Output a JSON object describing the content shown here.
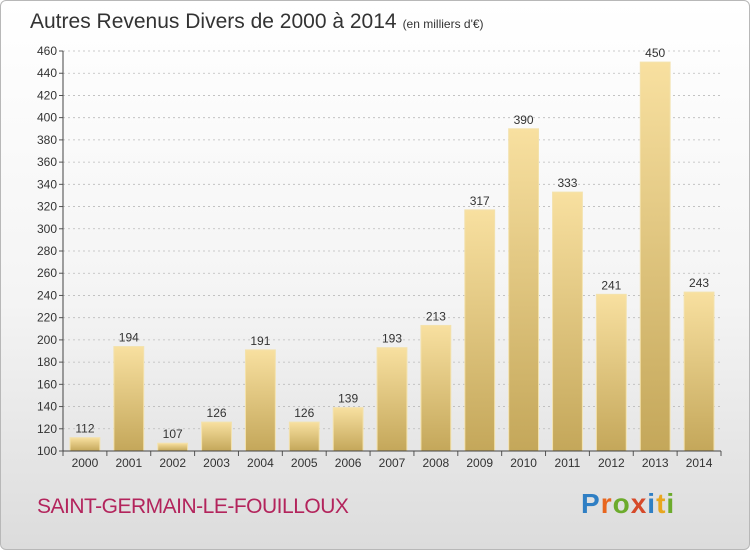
{
  "title": "Autres Revenus Divers de 2000 à 2014",
  "unit_note": "(en milliers d'€)",
  "place": "SAINT-GERMAIN-LE-FOUILLOUX",
  "logo": "Proxiti",
  "colors": {
    "bar_light": "#f7dc98",
    "bar_dark": "#c6a95c",
    "grid": "#bbbbbb",
    "place_text": "#b3245c"
  },
  "chart_data": {
    "type": "bar",
    "title": "Autres Revenus Divers de 2000 à 2014",
    "categories": [
      "2000",
      "2001",
      "2002",
      "2003",
      "2004",
      "2005",
      "2006",
      "2007",
      "2008",
      "2009",
      "2010",
      "2011",
      "2012",
      "2013",
      "2014"
    ],
    "values": [
      112,
      194,
      107,
      126,
      191,
      126,
      139,
      193,
      213,
      317,
      390,
      333,
      241,
      450,
      243
    ],
    "ylim": [
      100,
      460
    ],
    "yticks": [
      100,
      120,
      140,
      160,
      180,
      200,
      220,
      240,
      260,
      280,
      300,
      320,
      340,
      360,
      380,
      400,
      420,
      440,
      460
    ],
    "grid": "horizontal-dashed",
    "legend": "none"
  }
}
